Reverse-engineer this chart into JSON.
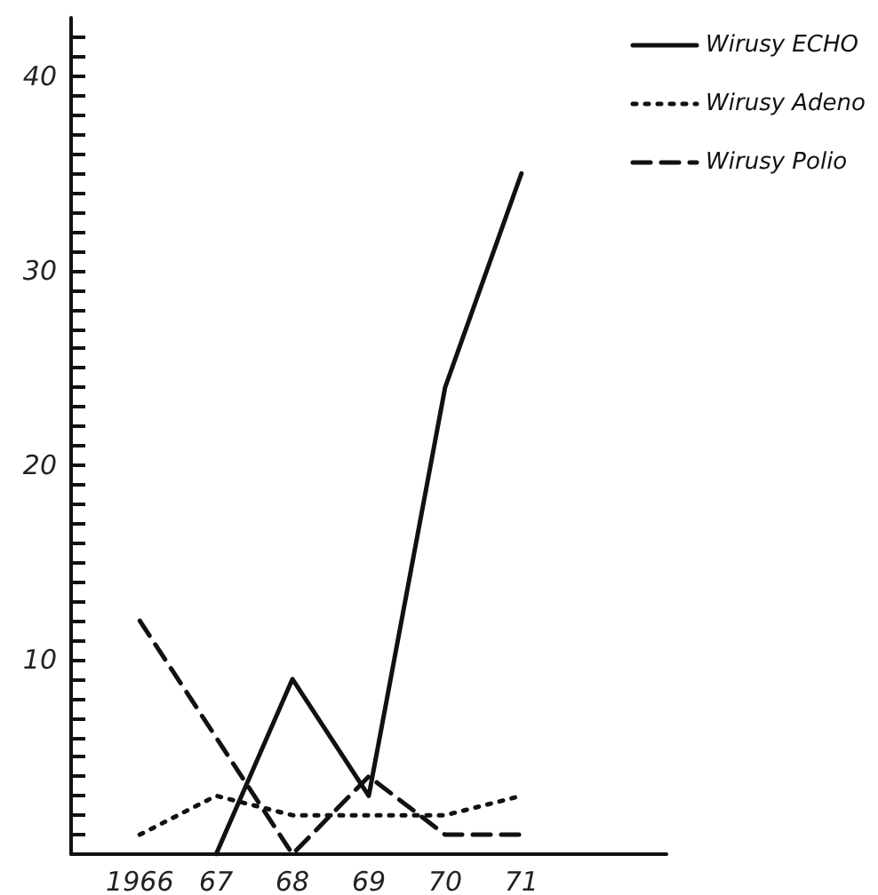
{
  "chart_data": {
    "type": "line",
    "x": [
      1966,
      1967,
      1968,
      1969,
      1970,
      1971
    ],
    "series": [
      {
        "name": "Wirusy ECHO",
        "color": "#111111",
        "line_style": "solid",
        "values": [
          null,
          0,
          9,
          3,
          24,
          35
        ]
      },
      {
        "name": "Wirusy Adeno",
        "color": "#111111",
        "line_style": "dotted",
        "values": [
          1,
          3,
          2,
          2,
          2,
          3
        ]
      },
      {
        "name": "Wirusy Polio",
        "color": "#111111",
        "line_style": "dashed",
        "values": [
          12,
          6,
          0,
          4,
          1,
          1
        ]
      }
    ],
    "xlim": [
      1965.1,
      1972.9
    ],
    "xticks": [
      {
        "value": 1966,
        "label": "1966"
      },
      {
        "value": 1967,
        "label": "67"
      },
      {
        "value": 1968,
        "label": "68"
      },
      {
        "value": 1969,
        "label": "69"
      },
      {
        "value": 1970,
        "label": "70"
      },
      {
        "value": 1971,
        "label": "71"
      }
    ],
    "ylim": [
      0,
      43
    ],
    "yticks": [
      {
        "value": 1,
        "label": null
      },
      {
        "value": 2,
        "label": null
      },
      {
        "value": 3,
        "label": null
      },
      {
        "value": 4,
        "label": null
      },
      {
        "value": 5,
        "label": null
      },
      {
        "value": 6,
        "label": null
      },
      {
        "value": 7,
        "label": null
      },
      {
        "value": 8,
        "label": null
      },
      {
        "value": 9,
        "label": null
      },
      10,
      {
        "value": 11,
        "label": null
      },
      {
        "value": 12,
        "label": null
      },
      {
        "value": 13,
        "label": null
      },
      {
        "value": 14,
        "label": null
      },
      {
        "value": 15,
        "label": null
      },
      {
        "value": 16,
        "label": null
      },
      {
        "value": 17,
        "label": null
      },
      {
        "value": 18,
        "label": null
      },
      {
        "value": 19,
        "label": null
      },
      20,
      {
        "value": 21,
        "label": null
      },
      {
        "value": 22,
        "label": null
      },
      {
        "value": 23,
        "label": null
      },
      {
        "value": 24,
        "label": null
      },
      {
        "value": 25,
        "label": null
      },
      {
        "value": 26,
        "label": null
      },
      {
        "value": 27,
        "label": null
      },
      {
        "value": 28,
        "label": null
      },
      {
        "value": 29,
        "label": null
      },
      30,
      {
        "value": 31,
        "label": null
      },
      {
        "value": 32,
        "label": null
      },
      {
        "value": 33,
        "label": null
      },
      {
        "value": 34,
        "label": null
      },
      {
        "value": 35,
        "label": null
      },
      {
        "value": 36,
        "label": null
      },
      {
        "value": 37,
        "label": null
      },
      {
        "value": 38,
        "label": null
      },
      {
        "value": 39,
        "label": null
      },
      40,
      {
        "value": 41,
        "label": null
      },
      {
        "value": 42,
        "label": null
      }
    ],
    "grid": false,
    "legend": "top right",
    "marker": "none"
  }
}
